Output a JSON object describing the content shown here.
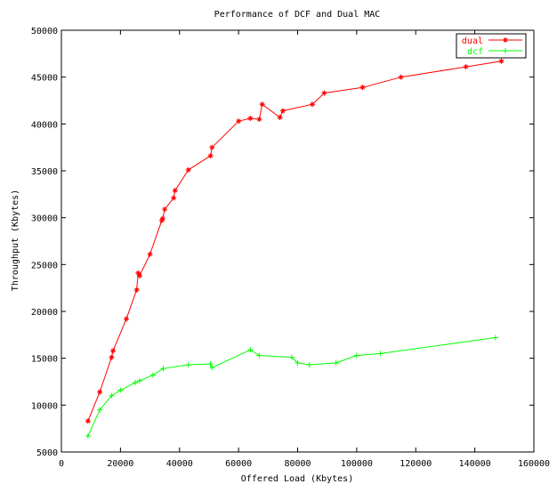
{
  "chart_data": {
    "type": "line",
    "title": "Performance of DCF and Dual MAC",
    "xlabel": "Offered Load (Kbytes)",
    "ylabel": "Throughput (Kbytes)",
    "xlim": [
      0,
      160000
    ],
    "ylim": [
      5000,
      50000
    ],
    "xticks": [
      0,
      20000,
      40000,
      60000,
      80000,
      100000,
      120000,
      140000,
      160000
    ],
    "yticks": [
      5000,
      10000,
      15000,
      20000,
      25000,
      30000,
      35000,
      40000,
      45000,
      50000
    ],
    "grid": false,
    "legend_position": "top-right",
    "series": [
      {
        "name": "dual",
        "color": "#ff0000",
        "marker": "star",
        "points": [
          [
            9000,
            8300
          ],
          [
            13000,
            11400
          ],
          [
            17000,
            15100
          ],
          [
            17500,
            15800
          ],
          [
            22000,
            19200
          ],
          [
            25500,
            22300
          ],
          [
            26000,
            24100
          ],
          [
            26500,
            23800
          ],
          [
            30000,
            26100
          ],
          [
            34000,
            29700
          ],
          [
            34300,
            29900
          ],
          [
            35000,
            30900
          ],
          [
            38000,
            32100
          ],
          [
            38500,
            32900
          ],
          [
            43000,
            35100
          ],
          [
            50500,
            36600
          ],
          [
            51000,
            37500
          ],
          [
            60000,
            40300
          ],
          [
            64000,
            40600
          ],
          [
            67000,
            40500
          ],
          [
            68000,
            42100
          ],
          [
            74000,
            40700
          ],
          [
            75000,
            41400
          ],
          [
            85000,
            42100
          ],
          [
            89000,
            43300
          ],
          [
            102000,
            43900
          ],
          [
            115000,
            45000
          ],
          [
            137000,
            46100
          ],
          [
            149000,
            46700
          ]
        ]
      },
      {
        "name": "dcf",
        "color": "#00ff00",
        "marker": "plus",
        "points": [
          [
            9000,
            6700
          ],
          [
            13000,
            9500
          ],
          [
            17000,
            11000
          ],
          [
            20000,
            11600
          ],
          [
            25000,
            12400
          ],
          [
            26500,
            12600
          ],
          [
            31000,
            13200
          ],
          [
            34500,
            13900
          ],
          [
            43000,
            14300
          ],
          [
            50500,
            14400
          ],
          [
            51000,
            14000
          ],
          [
            64000,
            15900
          ],
          [
            67000,
            15300
          ],
          [
            78000,
            15100
          ],
          [
            80000,
            14500
          ],
          [
            84000,
            14300
          ],
          [
            93000,
            14500
          ],
          [
            100000,
            15300
          ],
          [
            108000,
            15500
          ],
          [
            147000,
            17200
          ]
        ]
      }
    ]
  }
}
